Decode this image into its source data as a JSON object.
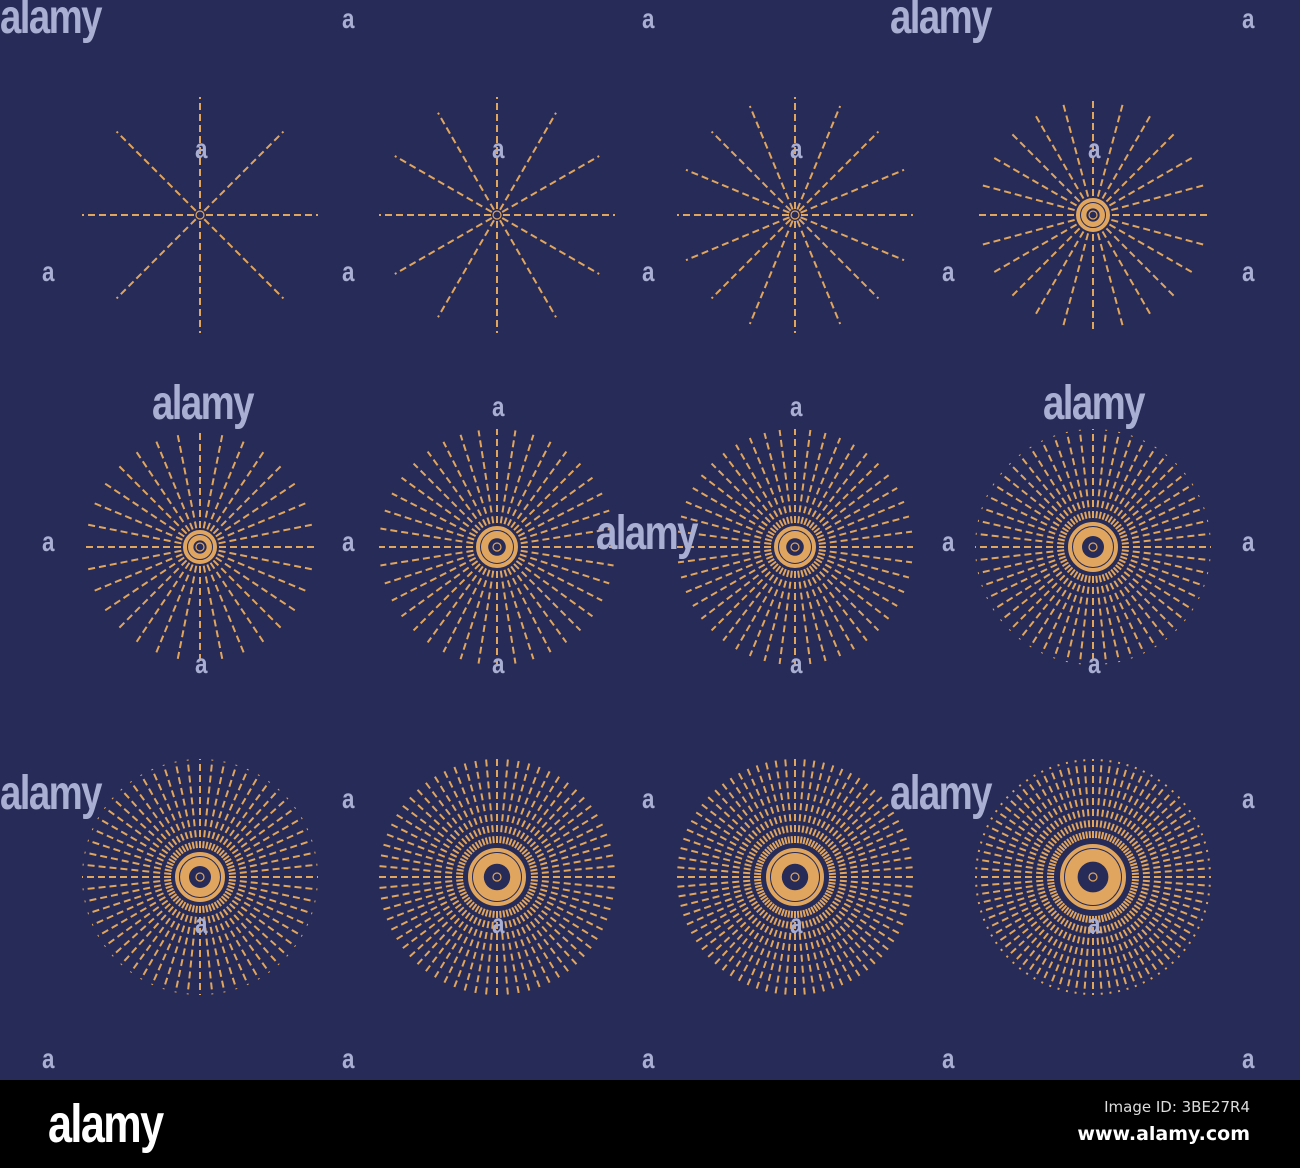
{
  "colors": {
    "background": "#272b57",
    "rays": "#e0a55e",
    "watermark": "#a9aed3",
    "footer": "#000000"
  },
  "sunbursts": [
    {
      "rays": 8,
      "ring": 0
    },
    {
      "rays": 12,
      "ring": 0
    },
    {
      "rays": 16,
      "ring": 0
    },
    {
      "rays": 24,
      "ring": 1
    },
    {
      "rays": 32,
      "ring": 1
    },
    {
      "rays": 40,
      "ring": 2
    },
    {
      "rays": 48,
      "ring": 2
    },
    {
      "rays": 56,
      "ring": 3
    },
    {
      "rays": 60,
      "ring": 3
    },
    {
      "rays": 68,
      "ring": 4
    },
    {
      "rays": 76,
      "ring": 4
    },
    {
      "rays": 84,
      "ring": 5
    }
  ],
  "watermark": {
    "logo": "alamy",
    "letter": "a"
  },
  "footer": {
    "logo": "alamy",
    "image_id": "Image ID: 3BE27R4",
    "url": "www.alamy.com"
  }
}
